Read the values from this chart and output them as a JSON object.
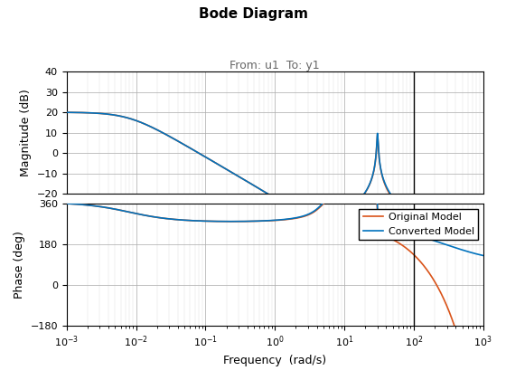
{
  "title": "Bode Diagram",
  "subtitle": "From: u1  To: y1",
  "xlabel": "Frequency  (rad/s)",
  "ylabel_mag": "Magnitude (dB)",
  "ylabel_phase": "Phase (deg)",
  "mag_ylim": [
    -20,
    40
  ],
  "phase_ylim": [
    -180,
    360
  ],
  "freq_lim": [
    0.001,
    1000.0
  ],
  "vline_freq": 100.0,
  "original_color": "#0072BD",
  "converted_color": "#D95319",
  "legend_labels": [
    "Original Model",
    "Converted Model"
  ],
  "vline_color": "black",
  "grid_major_color": "#AAAAAA",
  "grid_minor_color": "#DDDDDD",
  "background_color": "#FFFFFF",
  "title_fontsize": 11,
  "subtitle_fontsize": 9,
  "label_fontsize": 9,
  "tick_fontsize": 8,
  "legend_fontsize": 8
}
